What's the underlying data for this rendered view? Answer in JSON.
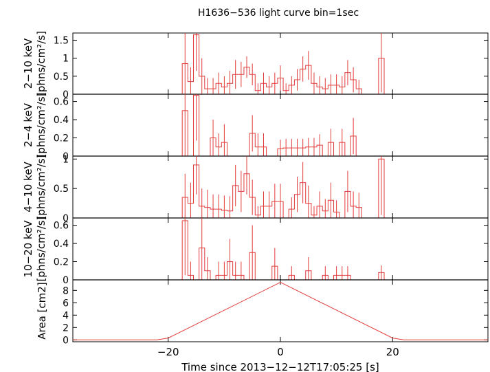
{
  "chart_data": {
    "type": "line",
    "title": "H1636−536 light curve bin=1sec",
    "xlabel": "Time since 2013−12−12T17:05:25 [s]",
    "xlim": [
      -37,
      37
    ],
    "xticks": [
      -20,
      0,
      20
    ],
    "xtick_labels": [
      "−20",
      "0",
      "20"
    ],
    "line_color": "#e23b3b",
    "panels": [
      {
        "ylabel": [
          "2−10 keV",
          "[phns/cm²/s]"
        ],
        "ylim": [
          0,
          1.7
        ],
        "yticks": [
          0,
          0.5,
          1,
          1.5
        ],
        "ytick_labels": [
          "0",
          "0.5",
          "1",
          "1.5"
        ],
        "bins": [
          {
            "t": -17,
            "y": 0.85,
            "e": 0.85
          },
          {
            "t": -16,
            "y": 0.35,
            "e": 0.4
          },
          {
            "t": -15,
            "y": 1.65,
            "e": 1.0
          },
          {
            "t": -14,
            "y": 0.5,
            "e": 0.5
          },
          {
            "t": -13,
            "y": 0.15,
            "e": 0.3
          },
          {
            "t": -12,
            "y": 0.15,
            "e": 0.3
          },
          {
            "t": -11,
            "y": 0.3,
            "e": 0.3
          },
          {
            "t": -10,
            "y": 0.2,
            "e": 0.3
          },
          {
            "t": -9,
            "y": 0.3,
            "e": 0.35
          },
          {
            "t": -8,
            "y": 0.55,
            "e": 0.4
          },
          {
            "t": -7,
            "y": 0.55,
            "e": 0.35
          },
          {
            "t": -6,
            "y": 0.75,
            "e": 0.3
          },
          {
            "t": -5,
            "y": 0.55,
            "e": 0.3
          },
          {
            "t": -4,
            "y": 0.1,
            "e": 0.2
          },
          {
            "t": -3,
            "y": 0.3,
            "e": 0.3
          },
          {
            "t": -2,
            "y": 0.2,
            "e": 0.3
          },
          {
            "t": -1,
            "y": 0.3,
            "e": 0.3
          },
          {
            "t": 0,
            "y": 0.45,
            "e": 0.35
          },
          {
            "t": 1,
            "y": 0.1,
            "e": 0.2
          },
          {
            "t": 2,
            "y": 0.25,
            "e": 0.25
          },
          {
            "t": 3,
            "y": 0.4,
            "e": 0.3
          },
          {
            "t": 4,
            "y": 0.7,
            "e": 0.35
          },
          {
            "t": 5,
            "y": 0.8,
            "e": 0.4
          },
          {
            "t": 6,
            "y": 0.3,
            "e": 0.3
          },
          {
            "t": 7,
            "y": 0.2,
            "e": 0.3
          },
          {
            "t": 8,
            "y": 0.15,
            "e": 0.3
          },
          {
            "t": 9,
            "y": 0.25,
            "e": 0.3
          },
          {
            "t": 10,
            "y": 0.25,
            "e": 0.3
          },
          {
            "t": 11,
            "y": 0.2,
            "e": 0.3
          },
          {
            "t": 12,
            "y": 0.6,
            "e": 0.35
          },
          {
            "t": 13,
            "y": 0.4,
            "e": 0.35
          },
          {
            "t": 14,
            "y": 0.15,
            "e": 0.25
          },
          {
            "t": 15,
            "y": 0.0,
            "e": 0.0
          },
          {
            "t": 16,
            "y": 0.0,
            "e": 0.0
          },
          {
            "t": 17,
            "y": 0.0,
            "e": 0.0
          },
          {
            "t": 18,
            "y": 1.0,
            "e": 0.95
          }
        ]
      },
      {
        "ylabel": [
          "2−4 keV",
          "[phns/cm²/s]"
        ],
        "ylim": [
          0,
          0.68
        ],
        "yticks": [
          0,
          0.2,
          0.4,
          0.6
        ],
        "ytick_labels": [
          "0",
          "0.2",
          "0.4",
          "0.6"
        ],
        "bins": [
          {
            "t": -17,
            "y": 0.5,
            "e": 0.5
          },
          {
            "t": -16,
            "y": 0.0,
            "e": 0.0
          },
          {
            "t": -15,
            "y": 0.67,
            "e": 0.5
          },
          {
            "t": -14,
            "y": 0.0,
            "e": 0.0
          },
          {
            "t": -13,
            "y": 0.0,
            "e": 0.0
          },
          {
            "t": -12,
            "y": 0.2,
            "e": 0.2
          },
          {
            "t": -11,
            "y": 0.1,
            "e": 0.15
          },
          {
            "t": -10,
            "y": 0.15,
            "e": 0.2
          },
          {
            "t": -9,
            "y": 0.0,
            "e": 0.0
          },
          {
            "t": -8,
            "y": 0.0,
            "e": 0.0
          },
          {
            "t": -7,
            "y": 0.0,
            "e": 0.0
          },
          {
            "t": -6,
            "y": 0.0,
            "e": 0.0
          },
          {
            "t": -5,
            "y": 0.25,
            "e": 0.2
          },
          {
            "t": -4,
            "y": 0.1,
            "e": 0.15
          },
          {
            "t": -3,
            "y": 0.1,
            "e": 0.15
          },
          {
            "t": -2,
            "y": 0.0,
            "e": 0.0
          },
          {
            "t": -1,
            "y": 0.0,
            "e": 0.0
          },
          {
            "t": 0,
            "y": 0.08,
            "e": 0.1
          },
          {
            "t": 1,
            "y": 0.09,
            "e": 0.1
          },
          {
            "t": 2,
            "y": 0.09,
            "e": 0.1
          },
          {
            "t": 3,
            "y": 0.09,
            "e": 0.1
          },
          {
            "t": 4,
            "y": 0.09,
            "e": 0.1
          },
          {
            "t": 5,
            "y": 0.1,
            "e": 0.1
          },
          {
            "t": 6,
            "y": 0.1,
            "e": 0.1
          },
          {
            "t": 7,
            "y": 0.12,
            "e": 0.12
          },
          {
            "t": 8,
            "y": 0.0,
            "e": 0.0
          },
          {
            "t": 9,
            "y": 0.15,
            "e": 0.15
          },
          {
            "t": 10,
            "y": 0.0,
            "e": 0.0
          },
          {
            "t": 11,
            "y": 0.15,
            "e": 0.15
          },
          {
            "t": 12,
            "y": 0.0,
            "e": 0.0
          },
          {
            "t": 13,
            "y": 0.22,
            "e": 0.2
          },
          {
            "t": 14,
            "y": 0.0,
            "e": 0.0
          }
        ]
      },
      {
        "ylabel": [
          "4−10 keV",
          "[phns/cm²/s]"
        ],
        "ylim": [
          0,
          1.05
        ],
        "yticks": [
          0,
          0.5,
          1
        ],
        "ytick_labels": [
          "0",
          "0.5",
          "1"
        ],
        "bins": [
          {
            "t": -17,
            "y": 0.35,
            "e": 0.4
          },
          {
            "t": -16,
            "y": 0.25,
            "e": 0.35
          },
          {
            "t": -15,
            "y": 0.9,
            "e": 0.5
          },
          {
            "t": -14,
            "y": 0.2,
            "e": 0.3
          },
          {
            "t": -13,
            "y": 0.18,
            "e": 0.3
          },
          {
            "t": -12,
            "y": 0.15,
            "e": 0.25
          },
          {
            "t": -11,
            "y": 0.15,
            "e": 0.25
          },
          {
            "t": -10,
            "y": 0.13,
            "e": 0.25
          },
          {
            "t": -9,
            "y": 0.12,
            "e": 0.25
          },
          {
            "t": -8,
            "y": 0.55,
            "e": 0.35
          },
          {
            "t": -7,
            "y": 0.45,
            "e": 0.35
          },
          {
            "t": -6,
            "y": 0.75,
            "e": 0.35
          },
          {
            "t": -5,
            "y": 0.35,
            "e": 0.3
          },
          {
            "t": -4,
            "y": 0.05,
            "e": 0.15
          },
          {
            "t": -3,
            "y": 0.2,
            "e": 0.25
          },
          {
            "t": -2,
            "y": 0.2,
            "e": 0.25
          },
          {
            "t": -1,
            "y": 0.28,
            "e": 0.3
          },
          {
            "t": 0,
            "y": 0.28,
            "e": 0.3
          },
          {
            "t": 1,
            "y": 0.0,
            "e": 0.0
          },
          {
            "t": 2,
            "y": 0.15,
            "e": 0.2
          },
          {
            "t": 3,
            "y": 0.4,
            "e": 0.3
          },
          {
            "t": 4,
            "y": 0.6,
            "e": 0.35
          },
          {
            "t": 5,
            "y": 0.25,
            "e": 0.3
          },
          {
            "t": 6,
            "y": 0.05,
            "e": 0.15
          },
          {
            "t": 7,
            "y": 0.2,
            "e": 0.25
          },
          {
            "t": 8,
            "y": 0.12,
            "e": 0.2
          },
          {
            "t": 9,
            "y": 0.3,
            "e": 0.3
          },
          {
            "t": 10,
            "y": 0.1,
            "e": 0.2
          },
          {
            "t": 11,
            "y": 0.0,
            "e": 0.0
          },
          {
            "t": 12,
            "y": 0.45,
            "e": 0.35
          },
          {
            "t": 13,
            "y": 0.2,
            "e": 0.25
          },
          {
            "t": 14,
            "y": 0.18,
            "e": 0.25
          },
          {
            "t": 15,
            "y": 0.0,
            "e": 0.0
          },
          {
            "t": 16,
            "y": 0.0,
            "e": 0.0
          },
          {
            "t": 17,
            "y": 0.0,
            "e": 0.0
          },
          {
            "t": 18,
            "y": 1.0,
            "e": 0.95
          }
        ]
      },
      {
        "ylabel": [
          "10−20 keV",
          "[phns/cm²/s]"
        ],
        "ylim": [
          0,
          0.68
        ],
        "yticks": [
          0,
          0.2,
          0.4,
          0.6
        ],
        "ytick_labels": [
          "0",
          "0.2",
          "0.4",
          "0.6"
        ],
        "bins": [
          {
            "t": -17,
            "y": 0.65,
            "e": 0.6
          },
          {
            "t": -16,
            "y": 0.05,
            "e": 0.15
          },
          {
            "t": -15,
            "y": 0.0,
            "e": 0.0
          },
          {
            "t": -14,
            "y": 0.35,
            "e": 0.35
          },
          {
            "t": -13,
            "y": 0.1,
            "e": 0.15
          },
          {
            "t": -12,
            "y": 0.0,
            "e": 0.0
          },
          {
            "t": -11,
            "y": 0.05,
            "e": 0.15
          },
          {
            "t": -10,
            "y": 0.05,
            "e": 0.15
          },
          {
            "t": -9,
            "y": 0.2,
            "e": 0.25
          },
          {
            "t": -8,
            "y": 0.05,
            "e": 0.15
          },
          {
            "t": -7,
            "y": 0.05,
            "e": 0.15
          },
          {
            "t": -6,
            "y": 0.0,
            "e": 0.0
          },
          {
            "t": -5,
            "y": 0.3,
            "e": 0.3
          },
          {
            "t": -4,
            "y": 0.0,
            "e": 0.0
          },
          {
            "t": -3,
            "y": 0.0,
            "e": 0.0
          },
          {
            "t": -2,
            "y": 0.0,
            "e": 0.0
          },
          {
            "t": -1,
            "y": 0.15,
            "e": 0.2
          },
          {
            "t": 0,
            "y": 0.0,
            "e": 0.0
          },
          {
            "t": 1,
            "y": 0.0,
            "e": 0.0
          },
          {
            "t": 2,
            "y": 0.05,
            "e": 0.1
          },
          {
            "t": 3,
            "y": 0.0,
            "e": 0.0
          },
          {
            "t": 4,
            "y": 0.0,
            "e": 0.0
          },
          {
            "t": 5,
            "y": 0.1,
            "e": 0.15
          },
          {
            "t": 6,
            "y": 0.0,
            "e": 0.0
          },
          {
            "t": 7,
            "y": 0.0,
            "e": 0.0
          },
          {
            "t": 8,
            "y": 0.05,
            "e": 0.1
          },
          {
            "t": 9,
            "y": 0.0,
            "e": 0.0
          },
          {
            "t": 10,
            "y": 0.05,
            "e": 0.1
          },
          {
            "t": 11,
            "y": 0.05,
            "e": 0.1
          },
          {
            "t": 12,
            "y": 0.05,
            "e": 0.1
          },
          {
            "t": 13,
            "y": 0.0,
            "e": 0.0
          },
          {
            "t": 14,
            "y": 0.0,
            "e": 0.0
          },
          {
            "t": 15,
            "y": 0.0,
            "e": 0.0
          },
          {
            "t": 16,
            "y": 0.0,
            "e": 0.0
          },
          {
            "t": 17,
            "y": 0.0,
            "e": 0.0
          },
          {
            "t": 18,
            "y": 0.08,
            "e": 0.08
          }
        ]
      },
      {
        "ylabel": [
          "Area [cm2]"
        ],
        "ylim": [
          -0.3,
          9.7
        ],
        "yticks": [
          0,
          2,
          4,
          6,
          8
        ],
        "ytick_labels": [
          "0",
          "2",
          "4",
          "6",
          "8"
        ],
        "curve": {
          "x": [
            -37,
            -22,
            -20,
            0,
            20,
            22,
            37
          ],
          "y": [
            0,
            0,
            0.3,
            9.3,
            0.3,
            0,
            0
          ]
        }
      }
    ]
  }
}
